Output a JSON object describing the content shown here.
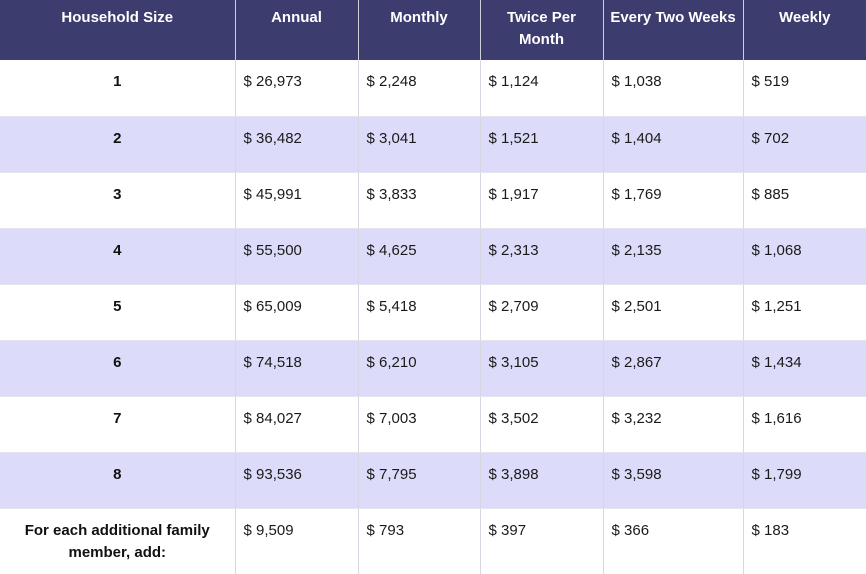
{
  "headers": [
    "Household Size",
    "Annual",
    "Monthly",
    "Twice Per Month",
    "Every Two Weeks",
    "Weekly"
  ],
  "rows": [
    [
      "1",
      "$ 26,973",
      "$ 2,248",
      "$ 1,124",
      "$ 1,038",
      "$ 519"
    ],
    [
      "2",
      "$ 36,482",
      "$ 3,041",
      "$ 1,521",
      "$ 1,404",
      "$ 702"
    ],
    [
      "3",
      "$ 45,991",
      "$ 3,833",
      "$ 1,917",
      "$ 1,769",
      "$ 885"
    ],
    [
      "4",
      "$ 55,500",
      "$ 4,625",
      "$ 2,313",
      "$ 2,135",
      "$ 1,068"
    ],
    [
      "5",
      "$ 65,009",
      "$ 5,418",
      "$ 2,709",
      "$ 2,501",
      "$ 1,251"
    ],
    [
      "6",
      "$ 74,518",
      "$ 6,210",
      "$ 3,105",
      "$ 2,867",
      "$ 1,434"
    ],
    [
      "7",
      "$ 84,027",
      "$ 7,003",
      "$ 3,502",
      "$ 3,232",
      "$ 1,616"
    ],
    [
      "8",
      "$ 93,536",
      "$ 7,795",
      "$ 3,898",
      "$ 3,598",
      "$ 1,799"
    ],
    [
      "For each additional family member, add:",
      "$ 9,509",
      "$ 793",
      "$ 397",
      "$ 366",
      "$ 183"
    ]
  ],
  "colors": {
    "header_bg": "#3d3c6f",
    "header_text": "#ffffff",
    "row_shade": "#dcdcfa",
    "row_plain": "#ffffff"
  }
}
